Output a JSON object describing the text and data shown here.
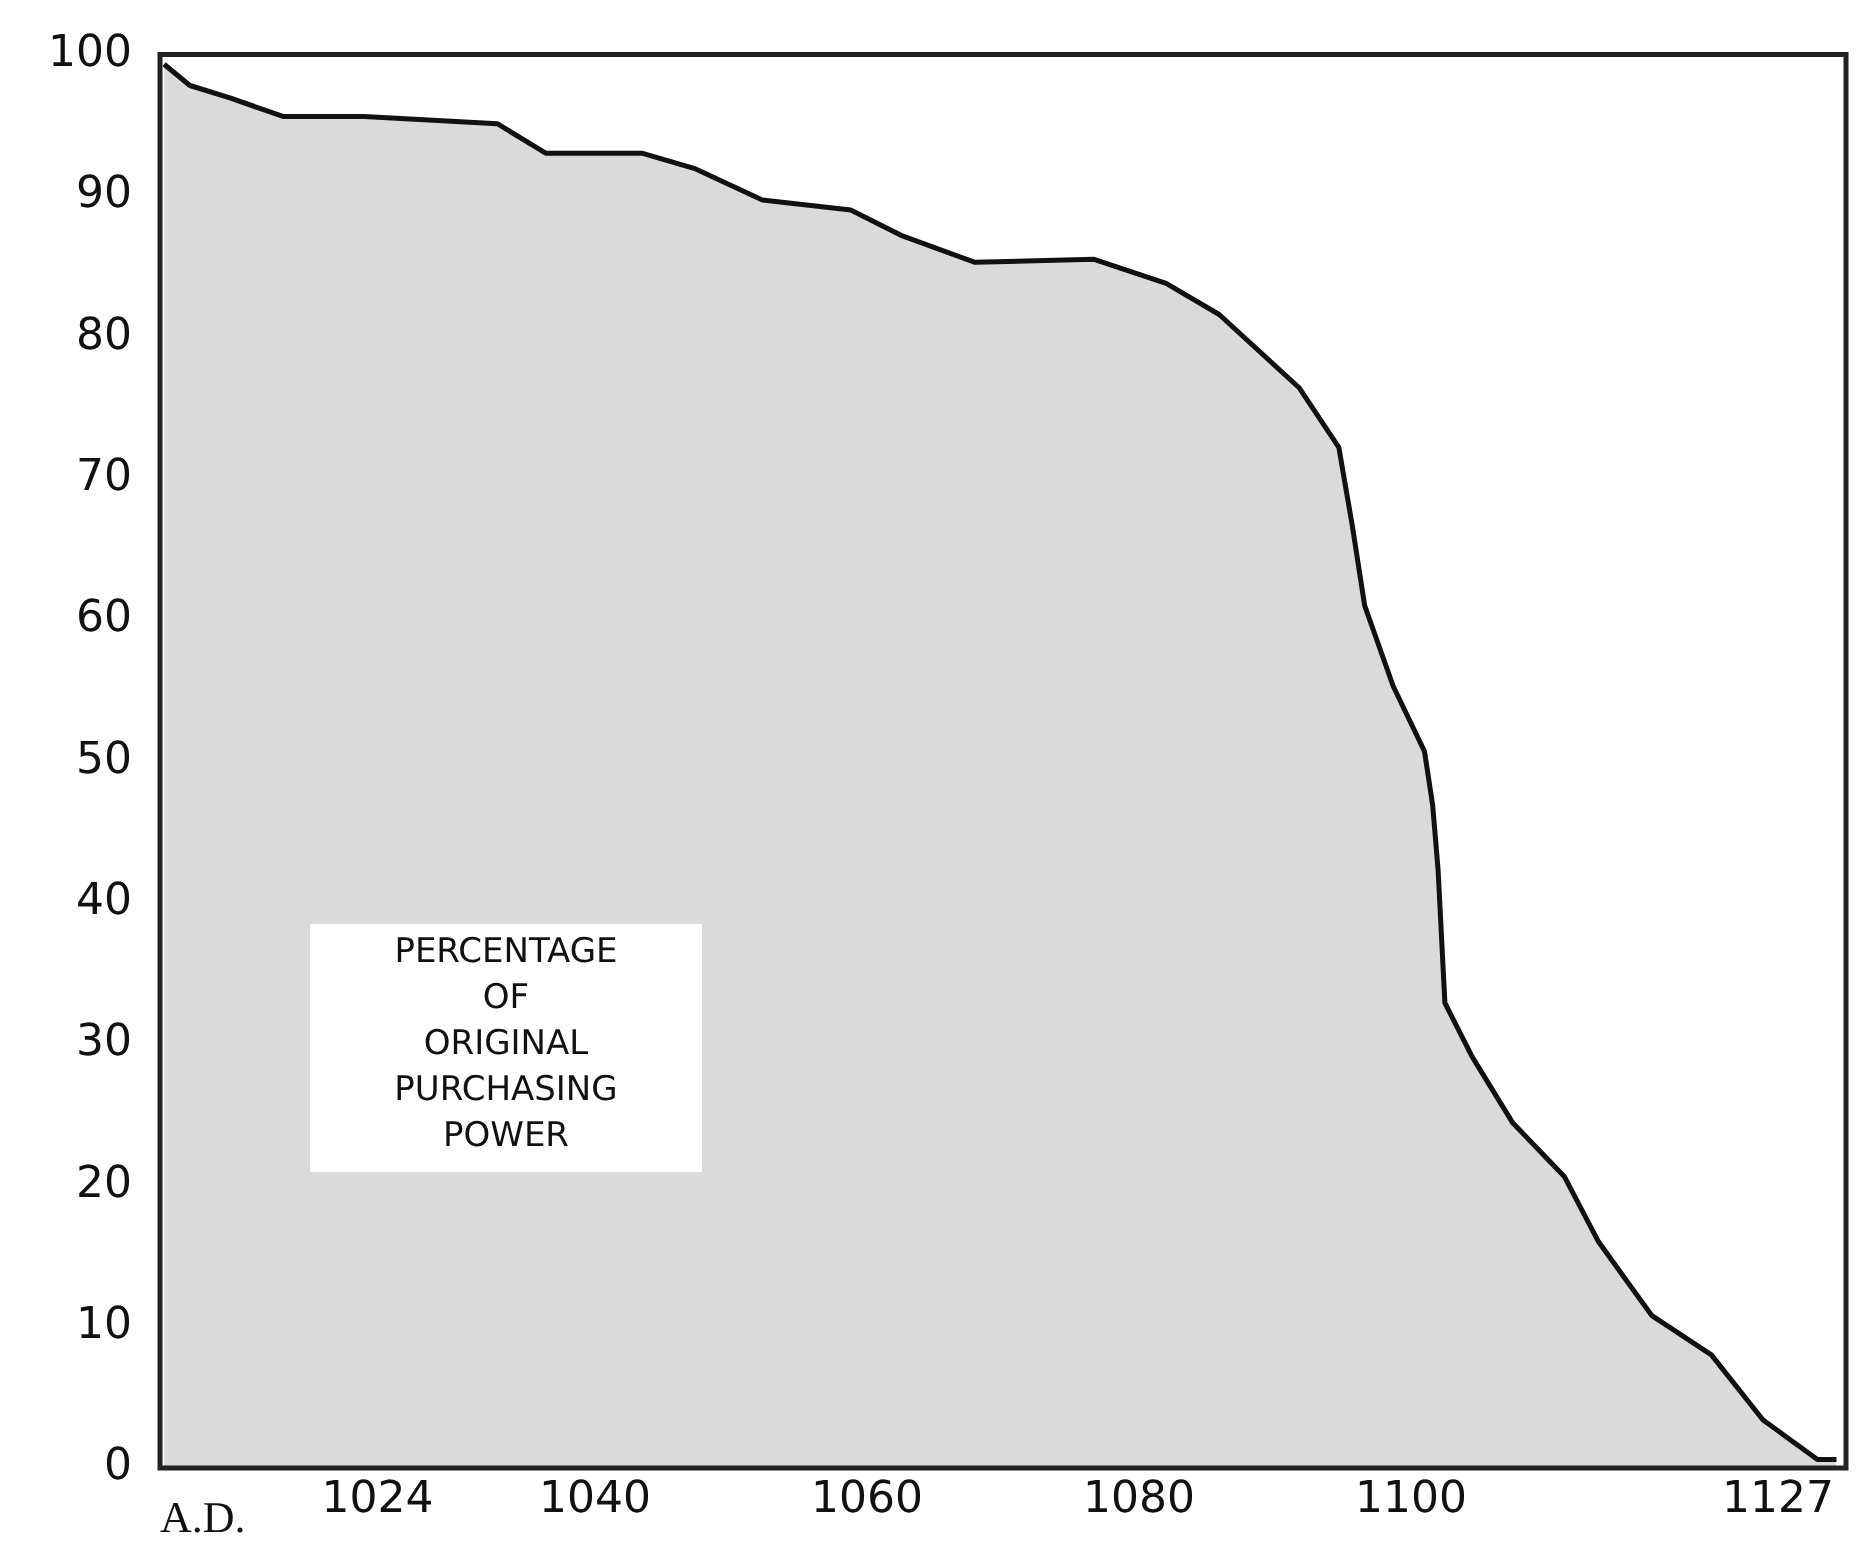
{
  "chart_data": {
    "type": "area",
    "ylabel": "PERCENTAGE OF ORIGINAL PURCHASING POWER",
    "annotations": [
      "A.D."
    ],
    "xlim": [
      1008,
      1132
    ],
    "xticks": [
      1024,
      1040,
      1060,
      1080,
      1100,
      1127
    ],
    "ylim": [
      0,
      100
    ],
    "yticks": [
      0,
      10,
      20,
      30,
      40,
      50,
      60,
      70,
      80,
      90,
      100
    ],
    "grid": false,
    "legend": false,
    "series": [
      {
        "color": "#111111",
        "x": [
          1008.3,
          1010.2,
          1013.2,
          1017.1,
          1023,
          1032.8,
          1036.4,
          1043.5,
          1047.4,
          1052.3,
          1058.8,
          1062.5,
          1067.9,
          1076.7,
          1082,
          1085.9,
          1091.8,
          1094.7,
          1095.7,
          1096.6,
          1098.7,
          1101,
          1101.6,
          1102,
          1102.5,
          1104.5,
          1107.5,
          1111.3,
          1113.8,
          1117.7,
          1122.1,
          1125.9,
          1129.9,
          1131.3
        ],
        "values": [
          99.3,
          97.8,
          96.9,
          95.6,
          95.6,
          95.1,
          93,
          93,
          91.9,
          89.7,
          89,
          87.2,
          85.3,
          85.5,
          83.8,
          81.6,
          76.4,
          72.2,
          66.6,
          61,
          55.3,
          50.7,
          46.9,
          42.3,
          32.9,
          29.1,
          24.4,
          20.6,
          16,
          10.8,
          8,
          3.4,
          0.6,
          0.6
        ]
      }
    ]
  }
}
